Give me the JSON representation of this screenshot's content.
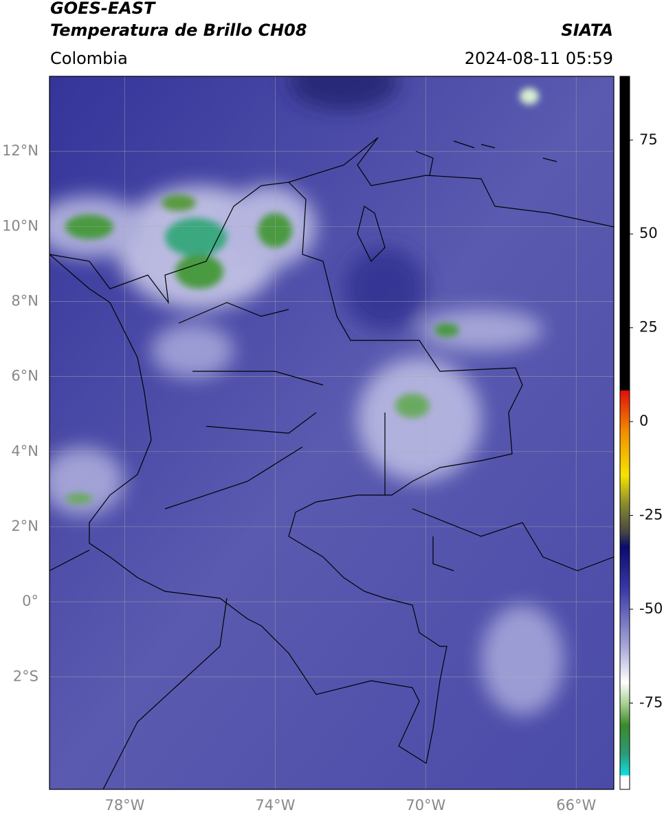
{
  "header": {
    "title": "GOES-EAST",
    "subtitle": "Temperatura de Brillo CH08",
    "source": "SIATA",
    "region": "Colombia",
    "timestamp": "2024-08-11 05:59"
  },
  "map": {
    "lonlim": [
      -80,
      -65
    ],
    "latlim": [
      -5,
      14
    ],
    "lon_ticks": [
      {
        "value": -78,
        "label": "78°W"
      },
      {
        "value": -74,
        "label": "74°W"
      },
      {
        "value": -70,
        "label": "70°W"
      },
      {
        "value": -66,
        "label": "66°W"
      }
    ],
    "lat_ticks": [
      {
        "value": 12,
        "label": "12°N"
      },
      {
        "value": 10,
        "label": "10°N"
      },
      {
        "value": 8,
        "label": "8°N"
      },
      {
        "value": 6,
        "label": "6°N"
      },
      {
        "value": 4,
        "label": "4°N"
      },
      {
        "value": 2,
        "label": "2°N"
      },
      {
        "value": 0,
        "label": "0°"
      },
      {
        "value": -2,
        "label": "2°S"
      }
    ]
  },
  "colorbar": {
    "range": [
      -98,
      92
    ],
    "ticks": [
      75,
      50,
      25,
      0,
      -25,
      -50,
      -75
    ]
  }
}
